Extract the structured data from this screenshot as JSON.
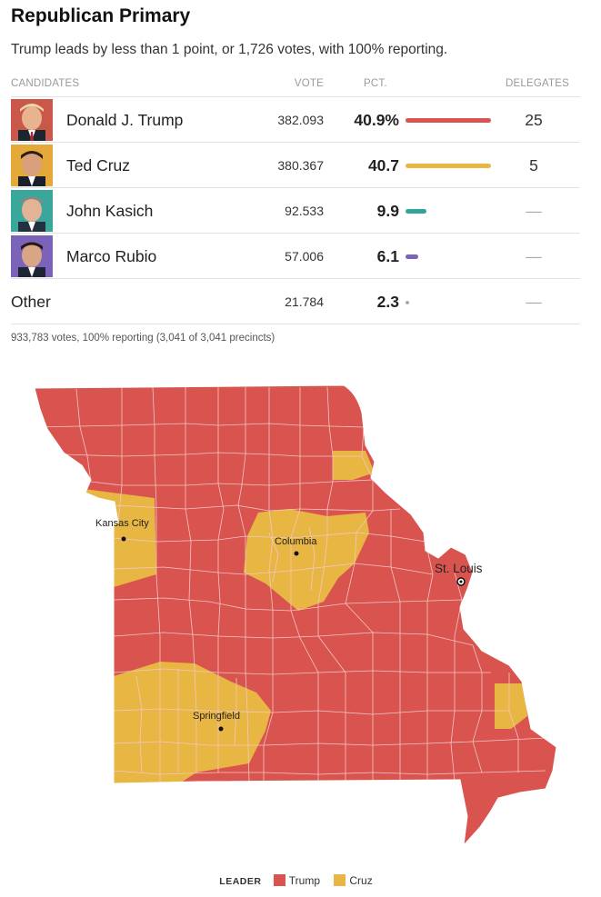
{
  "header": {
    "title": "Republican Primary",
    "subtitle": "Trump leads by less than 1 point, or 1,726 votes, with 100% reporting."
  },
  "table": {
    "columns": {
      "candidates": "CANDIDATES",
      "vote": "VOTE",
      "pct": "PCT.",
      "delegates": "DELEGATES"
    },
    "rows": [
      {
        "name": "Donald J. Trump",
        "vote": "382.093",
        "pct": "40.9%",
        "pct_value": 40.9,
        "delegates": "25",
        "color": "#d9534f",
        "photo": "trump-photo"
      },
      {
        "name": "Ted Cruz",
        "vote": "380.367",
        "pct": "40.7",
        "pct_value": 40.7,
        "delegates": "5",
        "color": "#e8b642",
        "photo": "cruz-photo"
      },
      {
        "name": "John Kasich",
        "vote": "92.533",
        "pct": "9.9",
        "pct_value": 9.9,
        "delegates": "—",
        "color": "#32a59a",
        "photo": "kasich-photo"
      },
      {
        "name": "Marco Rubio",
        "vote": "57.006",
        "pct": "6.1",
        "pct_value": 6.1,
        "delegates": "—",
        "color": "#7b63b6",
        "photo": "rubio-photo"
      },
      {
        "name": "Other",
        "vote": "21.784",
        "pct": "2.3",
        "pct_value": 2.3,
        "delegates": "—",
        "color": "#aaaaaa"
      }
    ],
    "summary": "933,783 votes, 100% reporting (3,041 of 3,041 precincts)"
  },
  "map": {
    "cities": [
      {
        "name": "Kansas City",
        "leader": "Cruz"
      },
      {
        "name": "Columbia",
        "leader": "Cruz"
      },
      {
        "name": "St. Louis",
        "leader": "Trump"
      },
      {
        "name": "Springfield",
        "leader": "Cruz"
      }
    ],
    "colors": {
      "trump": "#d9534f",
      "cruz": "#e8b642",
      "border": "#f3c7c5"
    }
  },
  "legend": {
    "label": "LEADER",
    "items": [
      {
        "name": "Trump",
        "color": "#d9534f"
      },
      {
        "name": "Cruz",
        "color": "#e8b642"
      }
    ]
  }
}
